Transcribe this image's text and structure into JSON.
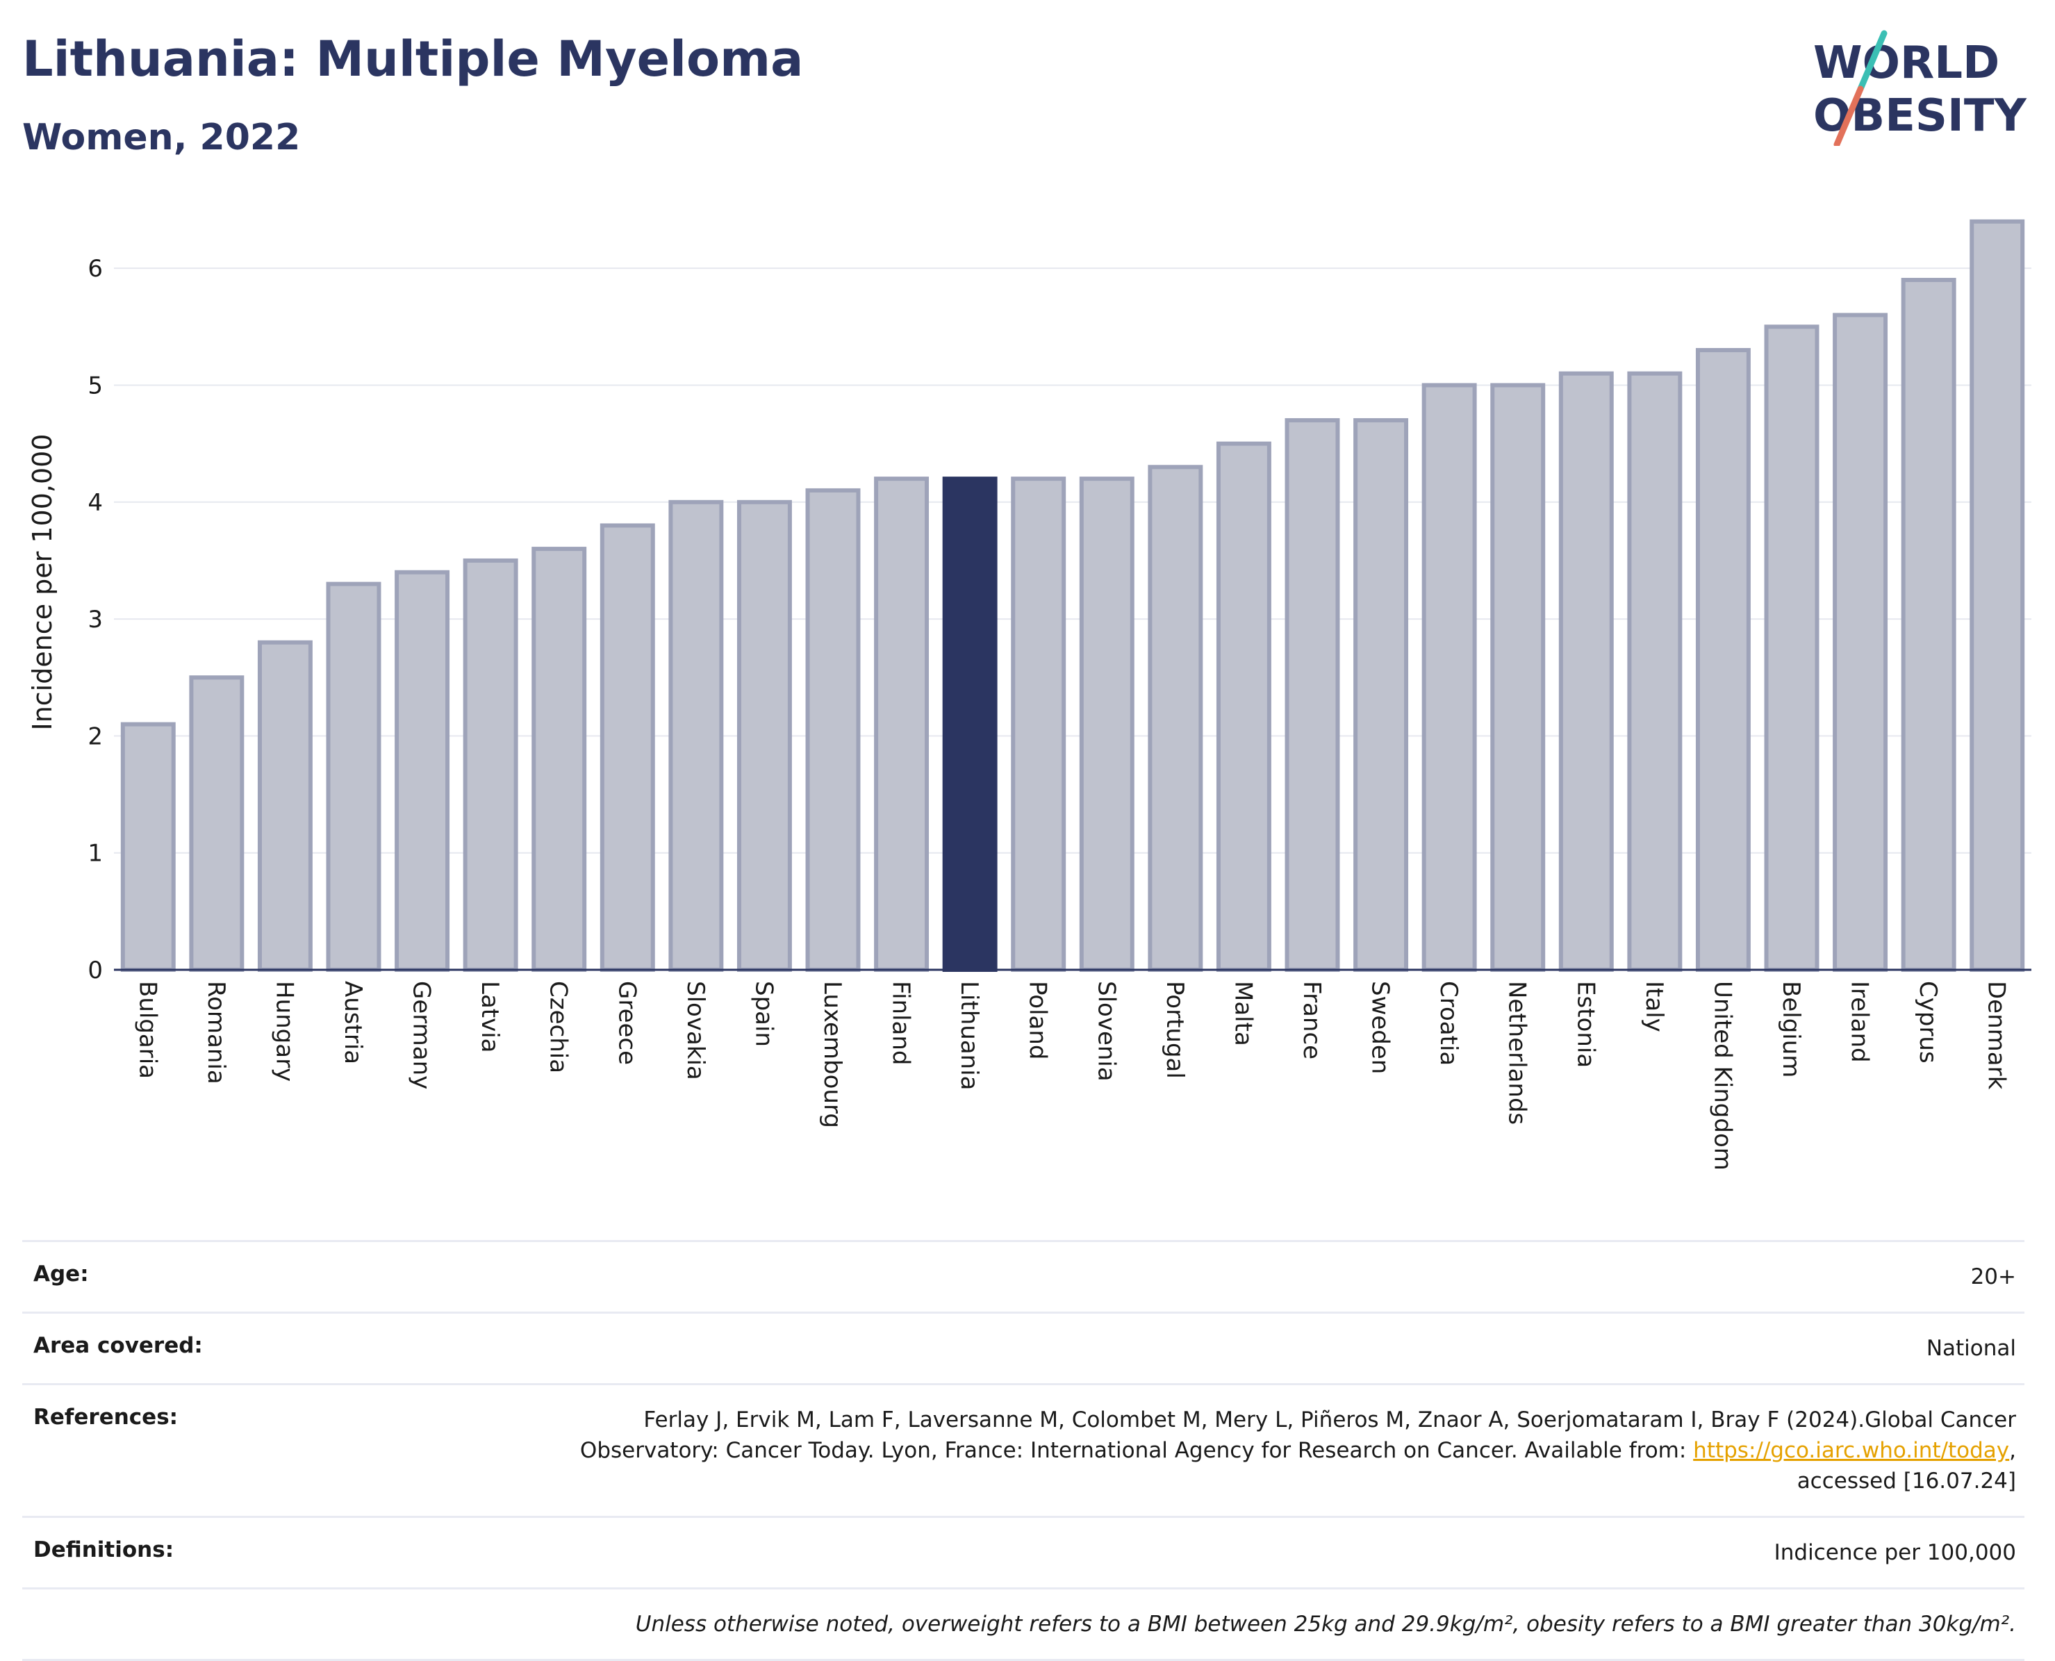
{
  "header": {
    "title": "Lithuania: Multiple Myeloma",
    "subtitle": "Women, 2022"
  },
  "logo": {
    "line1": "WORLD",
    "line2": "OBESITY"
  },
  "colors": {
    "highlight": "#2b3561",
    "bar": "#bfc2ce",
    "bar_border": "#9ea3b9",
    "accent_teal": "#3bbfb4",
    "accent_red": "#e2715a"
  },
  "chart_data": {
    "type": "bar",
    "title": "Lithuania: Multiple Myeloma",
    "subtitle": "Women, 2022",
    "xlabel": "",
    "ylabel": "Incidence per 100,000",
    "ylim": [
      0,
      6.5
    ],
    "yticks": [
      0,
      1,
      2,
      3,
      4,
      5,
      6
    ],
    "grid": true,
    "highlight": "Lithuania",
    "categories": [
      "Bulgaria",
      "Romania",
      "Hungary",
      "Austria",
      "Germany",
      "Latvia",
      "Czechia",
      "Greece",
      "Slovakia",
      "Spain",
      "Luxembourg",
      "Finland",
      "Lithuania",
      "Poland",
      "Slovenia",
      "Portugal",
      "Malta",
      "France",
      "Sweden",
      "Croatia",
      "Netherlands",
      "Estonia",
      "Italy",
      "United Kingdom",
      "Belgium",
      "Ireland",
      "Cyprus",
      "Denmark"
    ],
    "values": [
      2.1,
      2.5,
      2.8,
      3.3,
      3.4,
      3.5,
      3.6,
      3.8,
      4.0,
      4.0,
      4.1,
      4.2,
      4.2,
      4.2,
      4.2,
      4.3,
      4.5,
      4.7,
      4.7,
      5.0,
      5.0,
      5.1,
      5.1,
      5.3,
      5.5,
      5.6,
      5.9,
      6.4
    ]
  },
  "info": {
    "age": {
      "label": "Age:",
      "value": "20+"
    },
    "area": {
      "label": "Area covered:",
      "value": "National"
    },
    "references": {
      "label": "References:",
      "text": "Ferlay J, Ervik M, Lam F, Laversanne M, Colombet M, Mery L, Piñeros M, Znaor A, Soerjomataram I, Bray F (2024).Global Cancer Observatory: Cancer Today. Lyon, France: International Agency for Research on Cancer. Available from: ",
      "link": "https://gco.iarc.who.int/today",
      "suffix": ", accessed [16.07.24]"
    },
    "definitions": {
      "label": "Definitions:",
      "value": "Indicence per 100,000"
    },
    "note": "Unless otherwise noted, overweight refers to a BMI between 25kg and 29.9kg/m², obesity refers to a BMI greater than 30kg/m²."
  }
}
